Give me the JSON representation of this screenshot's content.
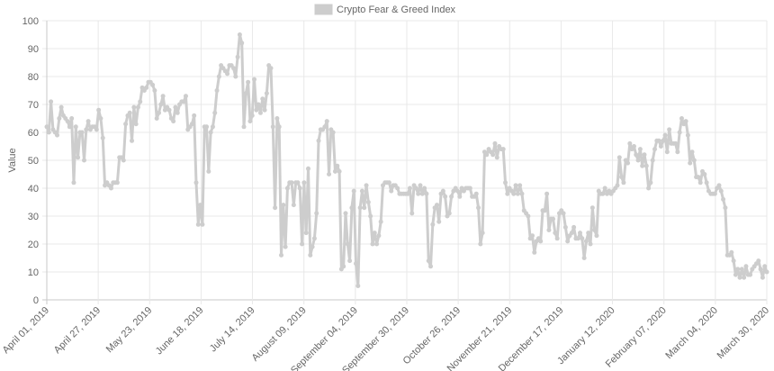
{
  "chart_data": {
    "type": "line",
    "title": "",
    "legend": {
      "label": "Crypto Fear & Greed Index",
      "placement": "top-center"
    },
    "xlabel": "",
    "ylabel": "Value",
    "ylim": [
      0,
      100
    ],
    "yticks": [
      0,
      10,
      20,
      30,
      40,
      50,
      60,
      70,
      80,
      90,
      100
    ],
    "xticks": [
      "April 01, 2019",
      "April 27, 2019",
      "May 23, 2019",
      "June 18, 2019",
      "July 14, 2019",
      "August 09, 2019",
      "September 04, 2019",
      "September 30, 2019",
      "October 26, 2019",
      "November 21, 2019",
      "December 17, 2019",
      "January 12, 2020",
      "February 07, 2020",
      "March 04, 2020",
      "March 30, 2020"
    ],
    "x_range": [
      "April 01, 2019",
      "March 30, 2020"
    ],
    "grid": true,
    "series": [
      {
        "name": "Crypto Fear & Greed Index",
        "color": "#cdcdcd",
        "values": [
          62,
          60,
          71,
          61,
          60,
          59,
          65,
          69,
          66,
          65,
          64,
          62,
          65,
          42,
          62,
          51,
          60,
          60,
          50,
          61,
          64,
          61,
          62,
          62,
          61,
          68,
          65,
          58,
          41,
          42,
          41,
          40,
          42,
          42,
          42,
          51,
          51,
          50,
          63,
          66,
          67,
          57,
          69,
          63,
          69,
          71,
          76,
          75,
          76,
          78,
          78,
          77,
          75,
          65,
          67,
          70,
          73,
          68,
          69,
          68,
          65,
          64,
          69,
          67,
          70,
          71,
          71,
          73,
          61,
          62,
          63,
          66,
          42,
          27,
          34,
          27,
          62,
          62,
          46,
          60,
          62,
          67,
          75,
          80,
          84,
          83,
          82,
          81,
          84,
          84,
          83,
          80,
          87,
          95,
          92,
          62,
          74,
          78,
          64,
          66,
          79,
          68,
          70,
          67,
          72,
          68,
          74,
          84,
          83,
          62,
          33,
          65,
          62,
          16,
          34,
          19,
          40,
          42,
          42,
          34,
          42,
          42,
          40,
          20,
          42,
          24,
          47,
          16,
          19,
          22,
          31,
          57,
          61,
          61,
          62,
          64,
          45,
          61,
          60,
          46,
          48,
          46,
          11,
          12,
          31,
          20,
          14,
          33,
          39,
          13,
          5,
          33,
          39,
          33,
          41,
          35,
          30,
          20,
          24,
          20,
          23,
          28,
          41,
          42,
          42,
          42,
          39,
          41,
          41,
          40,
          38,
          38,
          38,
          38,
          38,
          40,
          31,
          41,
          40,
          38,
          41,
          38,
          40,
          38,
          14,
          12,
          27,
          33,
          34,
          28,
          38,
          39,
          37,
          30,
          31,
          37,
          39,
          40,
          39,
          37,
          40,
          39,
          40,
          40,
          40,
          37,
          37,
          38,
          33,
          20,
          24,
          53,
          52,
          54,
          53,
          52,
          56,
          51,
          55,
          54,
          54,
          42,
          38,
          40,
          39,
          38,
          41,
          38,
          41,
          38,
          32,
          31,
          30,
          22,
          23,
          17,
          21,
          22,
          21,
          32,
          32,
          38,
          25,
          29,
          29,
          24,
          22,
          31,
          32,
          31,
          26,
          21,
          23,
          24,
          26,
          22,
          22,
          24,
          22,
          15,
          21,
          24,
          20,
          33,
          25,
          23,
          39,
          38,
          38,
          40,
          38,
          39,
          38,
          39,
          40,
          41,
          51,
          44,
          42,
          50,
          49,
          56,
          54,
          55,
          52,
          50,
          54,
          48,
          52,
          48,
          40,
          42,
          50,
          54,
          57,
          57,
          55,
          57,
          59,
          53,
          61,
          56,
          56,
          56,
          53,
          60,
          65,
          63,
          64,
          59,
          49,
          53,
          50,
          44,
          44,
          42,
          46,
          45,
          42,
          39,
          38,
          38,
          38,
          40,
          41,
          39,
          36,
          33,
          16,
          16,
          17,
          14,
          9,
          11,
          8,
          11,
          8,
          12,
          9,
          9,
          11,
          12,
          13,
          14,
          11,
          8,
          12,
          10
        ]
      }
    ]
  }
}
